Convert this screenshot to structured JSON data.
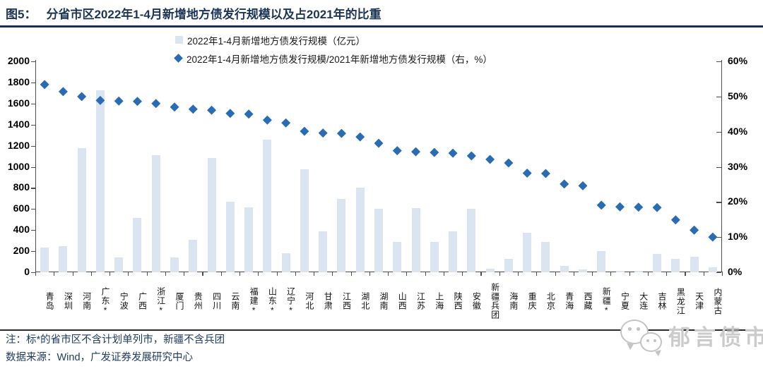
{
  "header": {
    "figure_label": "图5：",
    "title": "分省市区2022年1-4月新增地方债发行规模以及占2021年的比重"
  },
  "legend": {
    "bar_series_label": "2022年1-4月新增地方债发行规模（亿元）",
    "diamond_series_label": "2022年1-4月新增地方债发行规模/2021年新增地方债发行规模（右，%）"
  },
  "chart_data": {
    "type": "bar",
    "subtype": "bar-left-axis + diamond-scatter-right-axis",
    "categories": [
      "青岛",
      "深圳",
      "河南",
      "广东*",
      "宁波",
      "广西",
      "浙江*",
      "厦门",
      "贵州",
      "四川",
      "云南",
      "福建*",
      "山东*",
      "辽宁*",
      "河北",
      "甘肃",
      "江西",
      "湖北",
      "湖南",
      "山西",
      "江苏",
      "上海",
      "陕西",
      "安徽",
      "新疆兵团",
      "海南",
      "重庆",
      "北京",
      "青海",
      "西藏",
      "新疆*",
      "宁夏",
      "大连",
      "吉林",
      "黑龙江",
      "天津",
      "内蒙古"
    ],
    "series": [
      {
        "name": "2022年1-4月新增地方债发行规模（亿元）",
        "type": "bar",
        "axis": "left",
        "values": [
          235,
          245,
          1175,
          1725,
          140,
          515,
          1110,
          140,
          310,
          1085,
          670,
          615,
          1255,
          180,
          980,
          385,
          695,
          800,
          600,
          285,
          610,
          290,
          385,
          600,
          35,
          130,
          375,
          285,
          60,
          25,
          200,
          15,
          15,
          175,
          130,
          145,
          50
        ]
      },
      {
        "name": "2022年1-4月新增地方债发行规模/2021年新增地方债发行规模（右，%）",
        "type": "scatter-diamond",
        "axis": "right",
        "values": [
          53.4,
          51.4,
          50.0,
          48.9,
          48.7,
          48.6,
          48.0,
          47.0,
          46.4,
          46.1,
          45.2,
          45.0,
          43.3,
          42.5,
          40.1,
          39.6,
          39.5,
          38.5,
          36.7,
          34.6,
          34.3,
          34.1,
          33.9,
          33.1,
          32.1,
          31.1,
          28.2,
          28.1,
          25.1,
          24.6,
          19.1,
          18.6,
          18.5,
          18.4,
          14.9,
          12.0,
          10.0
        ]
      }
    ],
    "left_axis": {
      "min": 0,
      "max": 2000,
      "step": 200,
      "tick_labels": [
        "0",
        "200",
        "400",
        "600",
        "800",
        "1000",
        "1200",
        "1400",
        "1600",
        "1800",
        "2000"
      ]
    },
    "right_axis": {
      "min": 0,
      "max": 60,
      "step": 10,
      "tick_labels": [
        "0%",
        "10%",
        "20%",
        "30%",
        "40%",
        "50%",
        "60%"
      ]
    },
    "grid": false,
    "legend_position": "top-center",
    "colors": {
      "bar": "#dbe5f1",
      "diamond": "#2a6cb3",
      "title": "#1c3557",
      "axis": "#4d4d4d"
    }
  },
  "footer": {
    "note": "注：标*的省市区不含计划单列市，新疆不含兵团",
    "source": "数据来源：Wind，广发证券发展研究中心",
    "logo_text": "郁言债市",
    "logo_icon": "wechat-bubbles-icon"
  }
}
